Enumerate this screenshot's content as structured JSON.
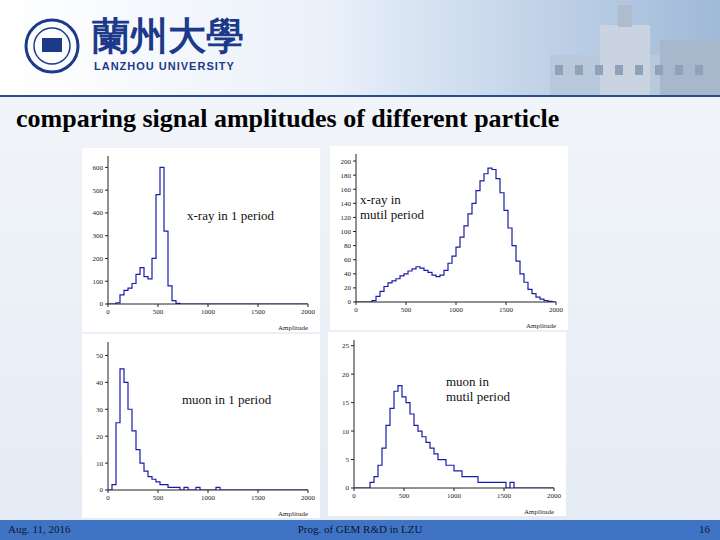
{
  "slide": {
    "logo_name": "蘭州大學",
    "logo_subtitle": "LANZHOU UNIVERSITY",
    "title": "comparing signal amplitudes of different particle",
    "footer": {
      "date": "Aug. 11, 2016",
      "center": "Prog. of GEM R&D in LZU",
      "page": "16"
    }
  },
  "chart_data": [
    {
      "type": "histogram",
      "annotation": "x-ray in 1 period",
      "x_label": "Amplitude",
      "color": "#1c1ca8",
      "xlim": [
        0,
        2000
      ],
      "xticks": [
        0,
        500,
        1000,
        1500,
        2000
      ],
      "ylim": [
        0,
        650
      ],
      "yticks": [
        0,
        100,
        200,
        300,
        400,
        500,
        600
      ],
      "bins": [
        0,
        40,
        80,
        120,
        160,
        200,
        240,
        280,
        320,
        360,
        400,
        440,
        480,
        520,
        560,
        600,
        640,
        680,
        720,
        760,
        800,
        840,
        880,
        920,
        960,
        1000,
        1040,
        1080,
        1120,
        1160,
        1200,
        1240,
        1280,
        1320,
        1360,
        1400,
        1440,
        1480,
        1520,
        1560,
        1600,
        1640,
        1680,
        1720,
        1760,
        1800,
        1840,
        1880,
        1920,
        1960,
        2000
      ],
      "values": [
        0,
        0,
        5,
        40,
        60,
        70,
        90,
        130,
        160,
        120,
        110,
        200,
        480,
        600,
        320,
        80,
        15,
        3,
        0,
        0,
        0,
        0,
        0,
        0,
        0,
        0,
        0,
        0,
        0,
        0,
        0,
        0,
        0,
        0,
        0,
        0,
        0,
        0,
        0,
        0,
        0,
        0,
        0,
        0,
        0,
        0,
        0,
        0,
        0,
        0
      ]
    },
    {
      "type": "histogram",
      "annotation": "x-ray in\nmutil period",
      "x_label": "Amplitude",
      "color": "#1c1ca8",
      "xlim": [
        0,
        2000
      ],
      "xticks": [
        0,
        500,
        1000,
        1500,
        2000
      ],
      "ylim": [
        0,
        210
      ],
      "yticks": [
        0,
        20,
        40,
        60,
        80,
        100,
        120,
        140,
        160,
        180,
        200
      ],
      "bins": [
        0,
        40,
        80,
        120,
        160,
        200,
        240,
        280,
        320,
        360,
        400,
        440,
        480,
        520,
        560,
        600,
        640,
        680,
        720,
        760,
        800,
        840,
        880,
        920,
        960,
        1000,
        1040,
        1080,
        1120,
        1160,
        1200,
        1240,
        1280,
        1320,
        1360,
        1400,
        1440,
        1480,
        1520,
        1560,
        1600,
        1640,
        1680,
        1720,
        1760,
        1800,
        1840,
        1880,
        1920,
        1960,
        2000
      ],
      "values": [
        0,
        0,
        0,
        0,
        2,
        8,
        15,
        22,
        27,
        30,
        33,
        37,
        40,
        44,
        47,
        50,
        48,
        45,
        42,
        38,
        36,
        38,
        45,
        55,
        65,
        78,
        92,
        108,
        125,
        140,
        158,
        172,
        182,
        190,
        188,
        175,
        155,
        130,
        105,
        80,
        58,
        40,
        28,
        18,
        12,
        7,
        4,
        2,
        1,
        0
      ]
    },
    {
      "type": "histogram",
      "annotation": "muon in 1 period",
      "x_label": "Amplitude",
      "color": "#1c1ca8",
      "xlim": [
        0,
        2000
      ],
      "xticks": [
        0,
        500,
        1000,
        1500,
        2000
      ],
      "ylim": [
        0,
        55
      ],
      "yticks": [
        0,
        10,
        20,
        30,
        40,
        50
      ],
      "bins": [
        0,
        40,
        80,
        120,
        160,
        200,
        240,
        280,
        320,
        360,
        400,
        440,
        480,
        520,
        560,
        600,
        640,
        680,
        720,
        760,
        800,
        840,
        880,
        920,
        960,
        1000,
        1040,
        1080,
        1120,
        1160,
        1200,
        1240,
        1280,
        1320,
        1360,
        1400,
        1440,
        1480,
        1520,
        1560,
        1600,
        1640,
        1680,
        1720,
        1760,
        1800,
        1840,
        1880,
        1920,
        1960,
        2000
      ],
      "values": [
        0,
        2,
        25,
        45,
        40,
        30,
        22,
        15,
        10,
        7,
        5,
        4,
        3,
        2,
        2,
        1,
        1,
        1,
        0,
        1,
        0,
        0,
        1,
        0,
        0,
        0,
        0,
        1,
        0,
        0,
        0,
        0,
        0,
        0,
        0,
        0,
        0,
        0,
        0,
        0,
        0,
        0,
        0,
        0,
        0,
        0,
        0,
        0,
        0,
        0
      ]
    },
    {
      "type": "histogram",
      "annotation": "muon in\nmutil period",
      "x_label": "Amplitude",
      "color": "#1c1ca8",
      "xlim": [
        0,
        2000
      ],
      "xticks": [
        0,
        500,
        1000,
        1500,
        2000
      ],
      "ylim": [
        0,
        26
      ],
      "yticks": [
        0,
        5,
        10,
        15,
        20,
        25
      ],
      "bins": [
        0,
        40,
        80,
        120,
        160,
        200,
        240,
        280,
        320,
        360,
        400,
        440,
        480,
        520,
        560,
        600,
        640,
        680,
        720,
        760,
        800,
        840,
        880,
        920,
        960,
        1000,
        1040,
        1080,
        1120,
        1160,
        1200,
        1240,
        1280,
        1320,
        1360,
        1400,
        1440,
        1480,
        1520,
        1560,
        1600,
        1640,
        1680,
        1720,
        1760,
        1800,
        1840,
        1880,
        1920,
        1960,
        2000
      ],
      "values": [
        0,
        0,
        0,
        0,
        1,
        2,
        4,
        7,
        11,
        14,
        17,
        18,
        16,
        15,
        13,
        11,
        10,
        9,
        8,
        7,
        6,
        5,
        5,
        4,
        4,
        3,
        3,
        2,
        2,
        2,
        2,
        1,
        1,
        1,
        1,
        1,
        1,
        1,
        0,
        1,
        0,
        0,
        0,
        0,
        0,
        0,
        0,
        0,
        0,
        0
      ]
    }
  ]
}
